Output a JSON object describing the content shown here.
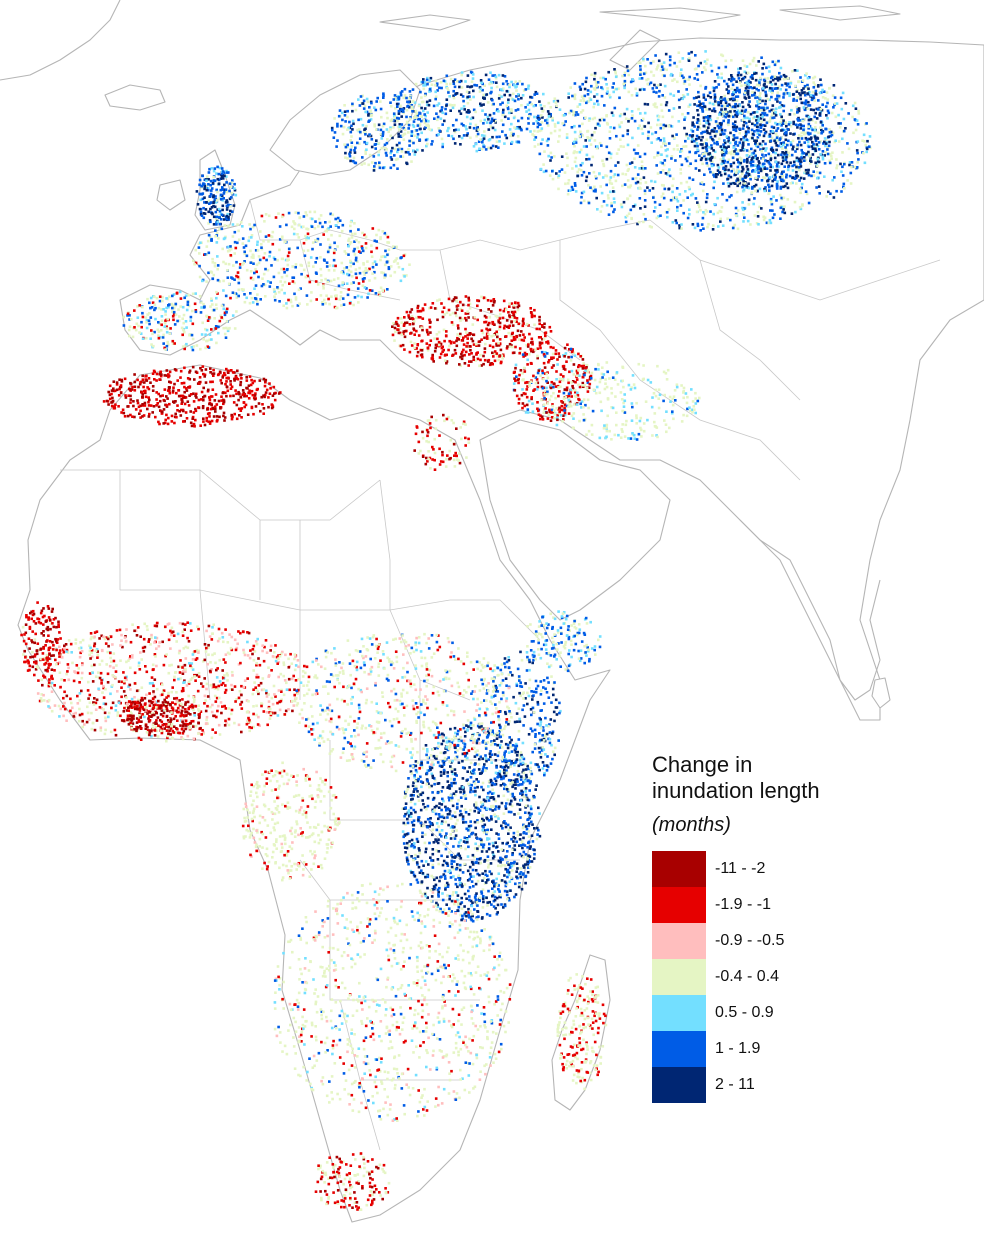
{
  "legend": {
    "title_line1": "Change in",
    "title_line2": "inundation length",
    "unit": "(months)",
    "classes": [
      {
        "label": "-11 - -2",
        "color": "#a80000"
      },
      {
        "label": "-1.9 - -1",
        "color": "#e60000"
      },
      {
        "label": "-0.9 - -0.5",
        "color": "#ffbebe"
      },
      {
        "label": "-0.4 - 0.4",
        "color": "#e5f5c4"
      },
      {
        "label": "0.5 - 0.9",
        "color": "#73dfff"
      },
      {
        "label": "1 - 1.9",
        "color": "#005ce6"
      },
      {
        "label": "2 - 11",
        "color": "#002673"
      }
    ]
  }
}
